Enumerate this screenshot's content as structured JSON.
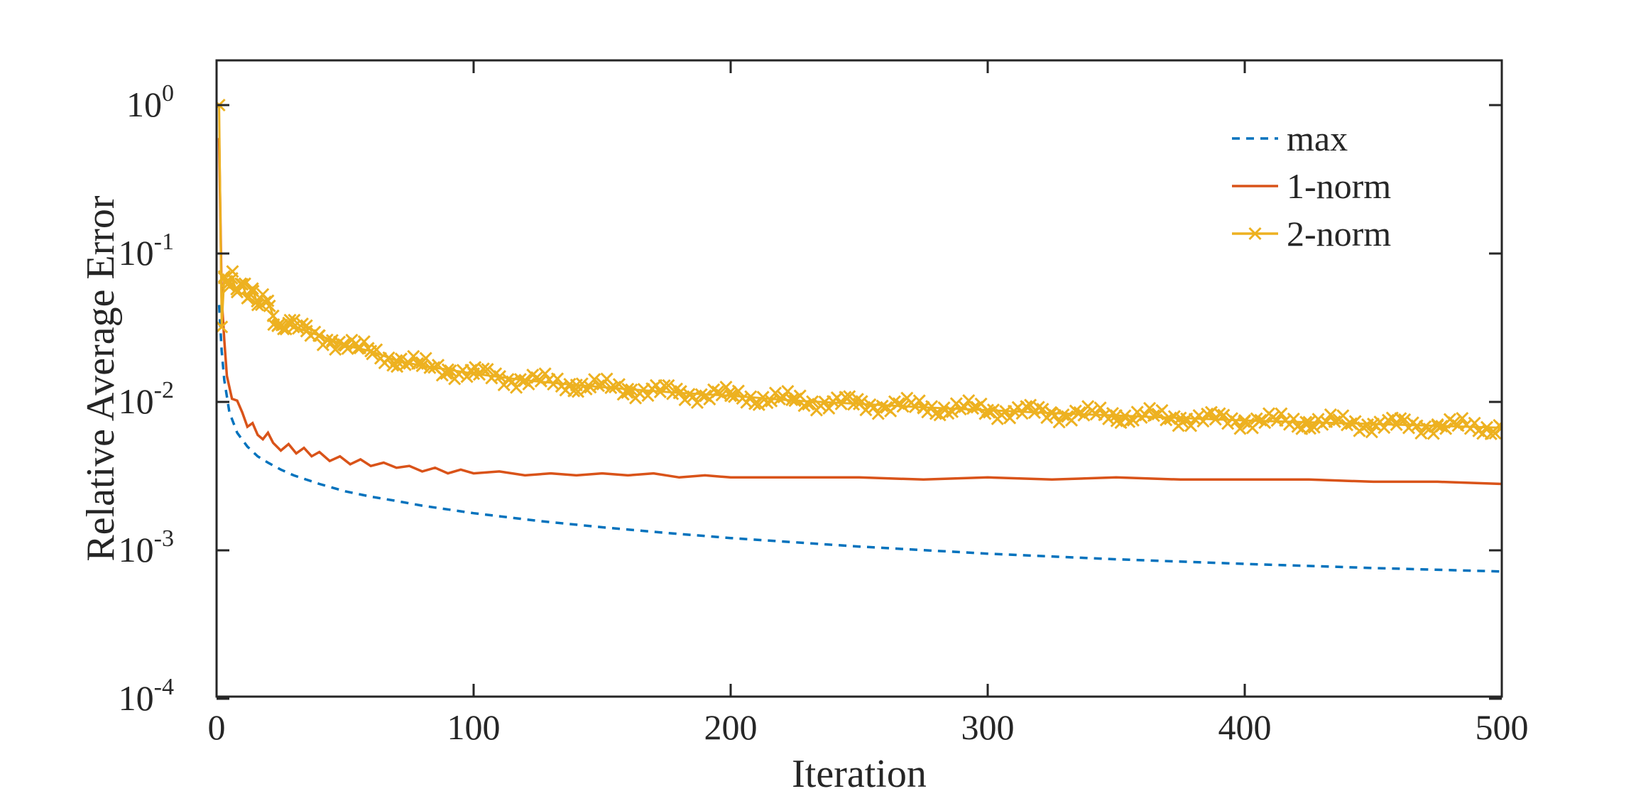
{
  "chart_data": {
    "type": "line",
    "title": "",
    "xlabel": "Iteration",
    "ylabel": "Relative Average Error",
    "y_scale": "log",
    "xlim": [
      0,
      500
    ],
    "ylim": [
      0.0001,
      2
    ],
    "x_ticks": [
      {
        "value": 0,
        "label": "0"
      },
      {
        "value": 100,
        "label": "100"
      },
      {
        "value": 200,
        "label": "200"
      },
      {
        "value": 300,
        "label": "300"
      },
      {
        "value": 400,
        "label": "400"
      },
      {
        "value": 500,
        "label": "500"
      }
    ],
    "y_ticks": [
      {
        "value": 1,
        "base": "10",
        "exp": "0"
      },
      {
        "value": 0.1,
        "base": "10",
        "exp": "-1"
      },
      {
        "value": 0.01,
        "base": "10",
        "exp": "-2"
      },
      {
        "value": 0.001,
        "base": "10",
        "exp": "-3"
      },
      {
        "value": 0.0001,
        "base": "10",
        "exp": "-4"
      }
    ],
    "grid": false,
    "legend_position": "top-right",
    "series": [
      {
        "name": "max",
        "color": "#0072BD",
        "style": "dashed",
        "marker": "none",
        "x": [
          1,
          2,
          3,
          5,
          8,
          12,
          16,
          20,
          25,
          30,
          40,
          50,
          60,
          70,
          80,
          100,
          125,
          150,
          175,
          200,
          250,
          300,
          350,
          400,
          450,
          500
        ],
        "values": [
          0.045,
          0.022,
          0.014,
          0.0085,
          0.0062,
          0.005,
          0.0043,
          0.0039,
          0.0035,
          0.0032,
          0.0028,
          0.0025,
          0.0023,
          0.00215,
          0.002,
          0.00178,
          0.00158,
          0.00143,
          0.00131,
          0.00121,
          0.00106,
          0.00095,
          0.00087,
          0.00081,
          0.00076,
          0.00072
        ]
      },
      {
        "name": "1-norm",
        "color": "#D95319",
        "style": "solid",
        "marker": "none",
        "x": [
          1,
          2,
          3,
          4,
          6,
          8,
          10,
          12,
          14,
          16,
          18,
          20,
          22,
          25,
          28,
          31,
          34,
          37,
          40,
          44,
          48,
          52,
          56,
          60,
          65,
          70,
          75,
          80,
          85,
          90,
          95,
          100,
          110,
          120,
          130,
          140,
          150,
          160,
          170,
          180,
          190,
          200,
          225,
          250,
          275,
          300,
          325,
          350,
          375,
          400,
          425,
          450,
          475,
          500
        ],
        "values": [
          0.6,
          0.05,
          0.026,
          0.015,
          0.0105,
          0.0102,
          0.0085,
          0.0068,
          0.0072,
          0.006,
          0.0056,
          0.0062,
          0.0053,
          0.0047,
          0.0052,
          0.0045,
          0.0049,
          0.0043,
          0.0046,
          0.004,
          0.0043,
          0.0038,
          0.0041,
          0.0037,
          0.0039,
          0.0036,
          0.0037,
          0.0034,
          0.0036,
          0.0033,
          0.0035,
          0.0033,
          0.0034,
          0.0032,
          0.0033,
          0.0032,
          0.0033,
          0.0032,
          0.0033,
          0.0031,
          0.0032,
          0.0031,
          0.0031,
          0.0031,
          0.003,
          0.0031,
          0.003,
          0.0031,
          0.003,
          0.003,
          0.003,
          0.0029,
          0.0029,
          0.0028
        ]
      },
      {
        "name": "2-norm",
        "color": "#EDB120",
        "style": "solid",
        "marker": "x",
        "x": [
          1,
          2,
          3,
          4,
          5,
          6,
          8,
          10,
          12,
          14,
          16,
          18,
          20,
          22,
          24,
          26,
          28,
          30,
          35,
          40,
          45,
          50,
          55,
          60,
          70,
          80,
          90,
          100,
          120,
          140,
          160,
          180,
          200,
          225,
          250,
          275,
          300,
          325,
          350,
          375,
          400,
          425,
          450,
          475,
          500
        ],
        "values": [
          1.0,
          0.032,
          0.07,
          0.065,
          0.06,
          0.068,
          0.055,
          0.062,
          0.05,
          0.058,
          0.045,
          0.053,
          0.048,
          0.038,
          0.033,
          0.031,
          0.034,
          0.032,
          0.03,
          0.028,
          0.026,
          0.024,
          0.023,
          0.022,
          0.019,
          0.0175,
          0.0165,
          0.0155,
          0.014,
          0.013,
          0.0122,
          0.0115,
          0.011,
          0.0102,
          0.0097,
          0.0092,
          0.0088,
          0.0084,
          0.0081,
          0.0078,
          0.0075,
          0.0073,
          0.0071,
          0.0069,
          0.0067
        ]
      }
    ]
  }
}
